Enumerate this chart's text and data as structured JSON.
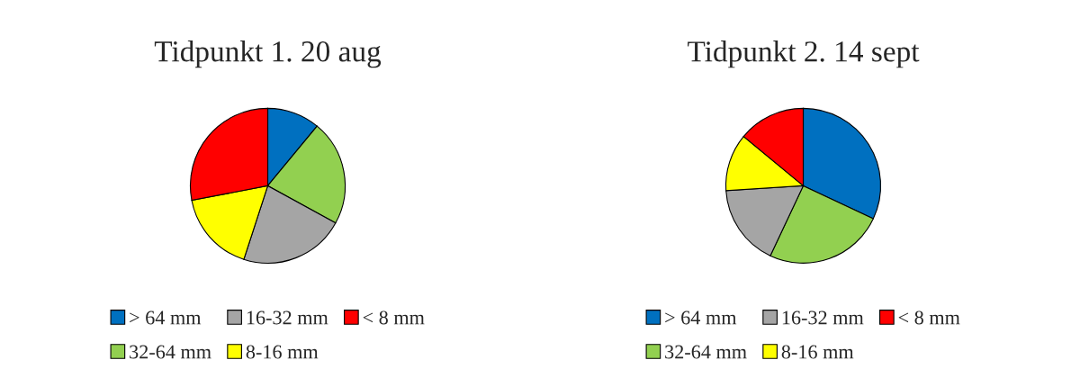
{
  "chart_data": [
    {
      "type": "pie",
      "title": "Tidpunkt 1. 20 aug",
      "categories": [
        "> 64 mm",
        "32-64 mm",
        "16-32 mm",
        "8-16 mm",
        "< 8 mm"
      ],
      "values": [
        11,
        22,
        22,
        17,
        28
      ],
      "colors": [
        "#0070c0",
        "#92d050",
        "#a5a5a5",
        "#ffff00",
        "#ff0000"
      ],
      "legend": "bottom"
    },
    {
      "type": "pie",
      "title": "Tidpunkt 2. 14 sept",
      "categories": [
        "> 64 mm",
        "32-64 mm",
        "16-32 mm",
        "8-16 mm",
        "< 8 mm"
      ],
      "values": [
        32,
        25,
        17,
        12,
        14
      ],
      "colors": [
        "#0070c0",
        "#92d050",
        "#a5a5a5",
        "#ffff00",
        "#ff0000"
      ],
      "legend": "bottom"
    }
  ]
}
